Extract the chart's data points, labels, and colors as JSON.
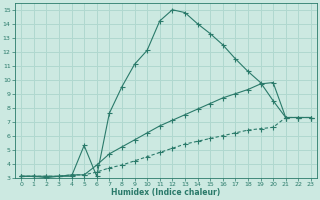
{
  "xlabel": "Humidex (Indice chaleur)",
  "xlim": [
    -0.5,
    23.5
  ],
  "ylim": [
    3,
    15.5
  ],
  "xticks": [
    0,
    1,
    2,
    3,
    4,
    5,
    6,
    7,
    8,
    9,
    10,
    11,
    12,
    13,
    14,
    15,
    16,
    17,
    18,
    19,
    20,
    21,
    22,
    23
  ],
  "yticks": [
    3,
    4,
    5,
    6,
    7,
    8,
    9,
    10,
    11,
    12,
    13,
    14,
    15
  ],
  "bg_color": "#cce9e1",
  "grid_color": "#b0d8cf",
  "line_color": "#2a7a6a",
  "line1_x": [
    0,
    1,
    2,
    3,
    4,
    5,
    6,
    7,
    8,
    9,
    10,
    11,
    12,
    13,
    14,
    15,
    16,
    17,
    18,
    19,
    20,
    21,
    22,
    23
  ],
  "line1_y": [
    3.1,
    3.1,
    3.0,
    3.1,
    3.1,
    5.3,
    3.1,
    7.6,
    9.5,
    11.1,
    12.1,
    14.2,
    15.0,
    14.8,
    14.0,
    13.3,
    12.5,
    11.5,
    10.6,
    9.8,
    8.5,
    7.3,
    7.3,
    7.3
  ],
  "line2_x": [
    0,
    1,
    2,
    3,
    4,
    5,
    6,
    7,
    8,
    9,
    10,
    11,
    12,
    13,
    14,
    15,
    16,
    17,
    18,
    19,
    20,
    21,
    22,
    23
  ],
  "line2_y": [
    3.1,
    3.1,
    3.1,
    3.1,
    3.2,
    3.2,
    3.9,
    4.7,
    5.2,
    5.7,
    6.2,
    6.7,
    7.1,
    7.5,
    7.9,
    8.3,
    8.7,
    9.0,
    9.3,
    9.7,
    9.8,
    7.3,
    7.3,
    7.3
  ],
  "line3_x": [
    0,
    1,
    2,
    3,
    4,
    5,
    6,
    7,
    8,
    9,
    10,
    11,
    12,
    13,
    14,
    15,
    16,
    17,
    18,
    19,
    20,
    21,
    22,
    23
  ],
  "line3_y": [
    3.1,
    3.1,
    3.1,
    3.1,
    3.2,
    3.2,
    3.4,
    3.7,
    3.9,
    4.2,
    4.5,
    4.8,
    5.1,
    5.4,
    5.6,
    5.8,
    6.0,
    6.2,
    6.4,
    6.5,
    6.6,
    7.3,
    7.3,
    7.3
  ]
}
